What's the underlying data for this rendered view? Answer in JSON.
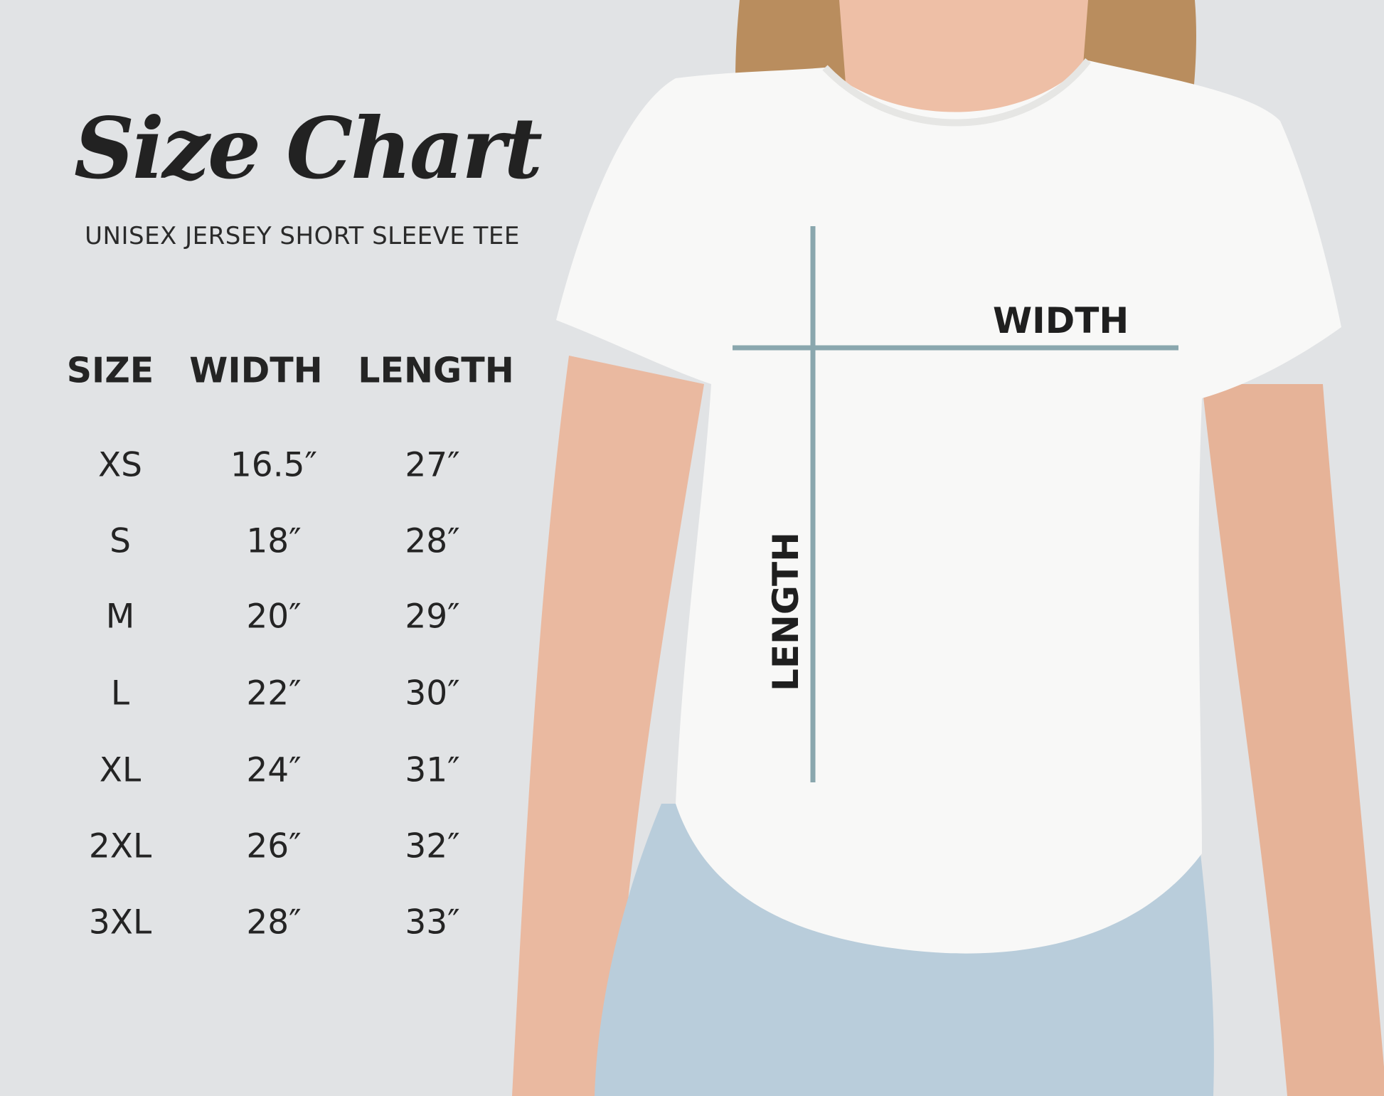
{
  "title": "Size Chart",
  "subtitle": "UNISEX JERSEY SHORT SLEEVE TEE",
  "table": {
    "headers": [
      "SIZE",
      "WIDTH",
      "LENGTH"
    ],
    "rows": [
      [
        "XS",
        "16.5″",
        "27″"
      ],
      [
        "S",
        "18″",
        "28″"
      ],
      [
        "M",
        "20″",
        "29″"
      ],
      [
        "L",
        "22″",
        "30″"
      ],
      [
        "XL",
        "24″",
        "31″"
      ],
      [
        "2XL",
        "26″",
        "32″"
      ],
      [
        "3XL",
        "28″",
        "33″"
      ]
    ]
  },
  "diagram": {
    "width_label": "WIDTH",
    "length_label": "LENGTH",
    "line_color": "#8aa7ae"
  },
  "colors": {
    "background": "#e1e3e5",
    "text": "#242424",
    "shirt": "#f8f8f7",
    "denim": "#b9cddb",
    "skin": "#eab9a0",
    "hair": "#b98d5e"
  }
}
